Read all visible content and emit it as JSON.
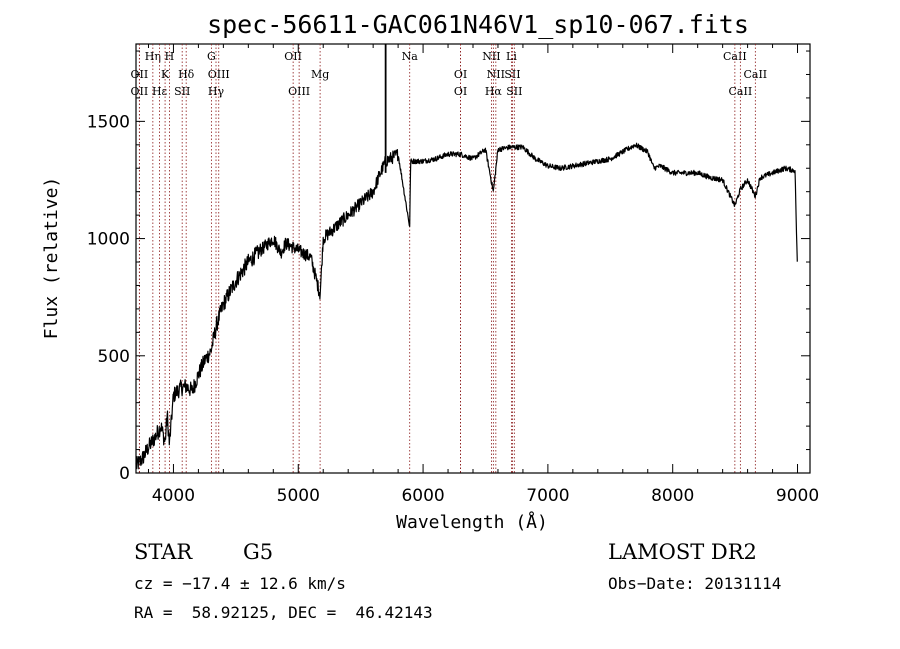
{
  "chart_data": {
    "type": "line",
    "title": "spec-56611-GAC061N46V1_sp10-067.fits",
    "xlabel": "Wavelength (Å)",
    "ylabel": "Flux (relative)",
    "xlim": [
      3700,
      9100
    ],
    "ylim": [
      0,
      1830
    ],
    "xticks": [
      4000,
      5000,
      6000,
      7000,
      8000,
      9000
    ],
    "xtick_labels": [
      "4000",
      "5000",
      "6000",
      "7000",
      "8000",
      "9000"
    ],
    "yticks": [
      0,
      500,
      1000,
      1500
    ],
    "ytick_labels": [
      "0",
      "500",
      "1000",
      "1500"
    ],
    "grid": false,
    "line_color": "#000000",
    "marker_color": "#8b1a1a",
    "series": [
      {
        "x": [
          3700,
          3750,
          3800,
          3850,
          3900,
          3933,
          3950,
          3968,
          4000,
          4050,
          4100,
          4150,
          4200,
          4250,
          4300,
          4350,
          4400,
          4500,
          4600,
          4700,
          4800,
          4861,
          4900,
          5000,
          5100,
          5175,
          5200,
          5300,
          5400,
          5500,
          5600,
          5650,
          5700,
          5800,
          5893,
          5900,
          6000,
          6100,
          6200,
          6300,
          6400,
          6500,
          6563,
          6600,
          6700,
          6800,
          6900,
          7000,
          7100,
          7200,
          7300,
          7400,
          7500,
          7600,
          7700,
          7800,
          7850,
          7900,
          8000,
          8100,
          8200,
          8300,
          8400,
          8498,
          8542,
          8600,
          8662,
          8700,
          8800,
          8900,
          8980,
          9000
        ],
        "y": [
          30,
          60,
          110,
          150,
          200,
          130,
          250,
          120,
          330,
          360,
          370,
          350,
          420,
          480,
          520,
          640,
          720,
          820,
          900,
          950,
          1000,
          940,
          980,
          950,
          920,
          760,
          1000,
          1050,
          1100,
          1150,
          1200,
          1270,
          1330,
          1360,
          1050,
          1330,
          1330,
          1340,
          1360,
          1360,
          1340,
          1380,
          1200,
          1380,
          1390,
          1390,
          1340,
          1310,
          1300,
          1310,
          1320,
          1330,
          1340,
          1370,
          1400,
          1370,
          1300,
          1310,
          1280,
          1280,
          1280,
          1260,
          1250,
          1140,
          1210,
          1250,
          1180,
          1260,
          1280,
          1300,
          1290,
          850
        ]
      }
    ],
    "lines": [
      {
        "label": "OII",
        "x": 3727,
        "row": 1
      },
      {
        "label": "OII",
        "x": 3727,
        "row": 2
      },
      {
        "label": "Hη",
        "x": 3835,
        "row": 0
      },
      {
        "label": "Hε",
        "x": 3889,
        "row": 2
      },
      {
        "label": "H",
        "x": 3968,
        "row": 0
      },
      {
        "label": "K",
        "x": 3933,
        "row": 1
      },
      {
        "label": "SII",
        "x": 4070,
        "row": 2
      },
      {
        "label": "Hδ",
        "x": 4102,
        "row": 1
      },
      {
        "label": "G",
        "x": 4304,
        "row": 0
      },
      {
        "label": "OIII",
        "x": 4363,
        "row": 1
      },
      {
        "label": "Hγ",
        "x": 4341,
        "row": 2
      },
      {
        "label": "OII",
        "x": 4959,
        "row": 0
      },
      {
        "label": "OIII",
        "x": 5007,
        "row": 2
      },
      {
        "label": "Mg",
        "x": 5175,
        "row": 1
      },
      {
        "label": "Na",
        "x": 5893,
        "row": 0
      },
      {
        "label": "OI",
        "x": 6300,
        "row": 1
      },
      {
        "label": "OI",
        "x": 6300,
        "row": 2
      },
      {
        "label": "NII",
        "x": 6548,
        "row": 0
      },
      {
        "label": "NII",
        "x": 6583,
        "row": 1
      },
      {
        "label": "Hα",
        "x": 6563,
        "row": 2
      },
      {
        "label": "Li",
        "x": 6708,
        "row": 0
      },
      {
        "label": "SII",
        "x": 6716,
        "row": 1
      },
      {
        "label": "SII",
        "x": 6731,
        "row": 2
      },
      {
        "label": "CaII",
        "x": 8498,
        "row": 0
      },
      {
        "label": "CaII",
        "x": 8542,
        "row": 2
      },
      {
        "label": "CaII",
        "x": 8662,
        "row": 1
      }
    ],
    "marker_x": 5700,
    "annotations": {
      "class": "STAR",
      "subclass": "G5",
      "survey": "LAMOST DR2",
      "cz": "cz = −17.4 ± 12.6 km/s",
      "obs_date": "Obs−Date: 20131114",
      "coords": "RA =  58.92125, DEC =  46.42143"
    }
  }
}
